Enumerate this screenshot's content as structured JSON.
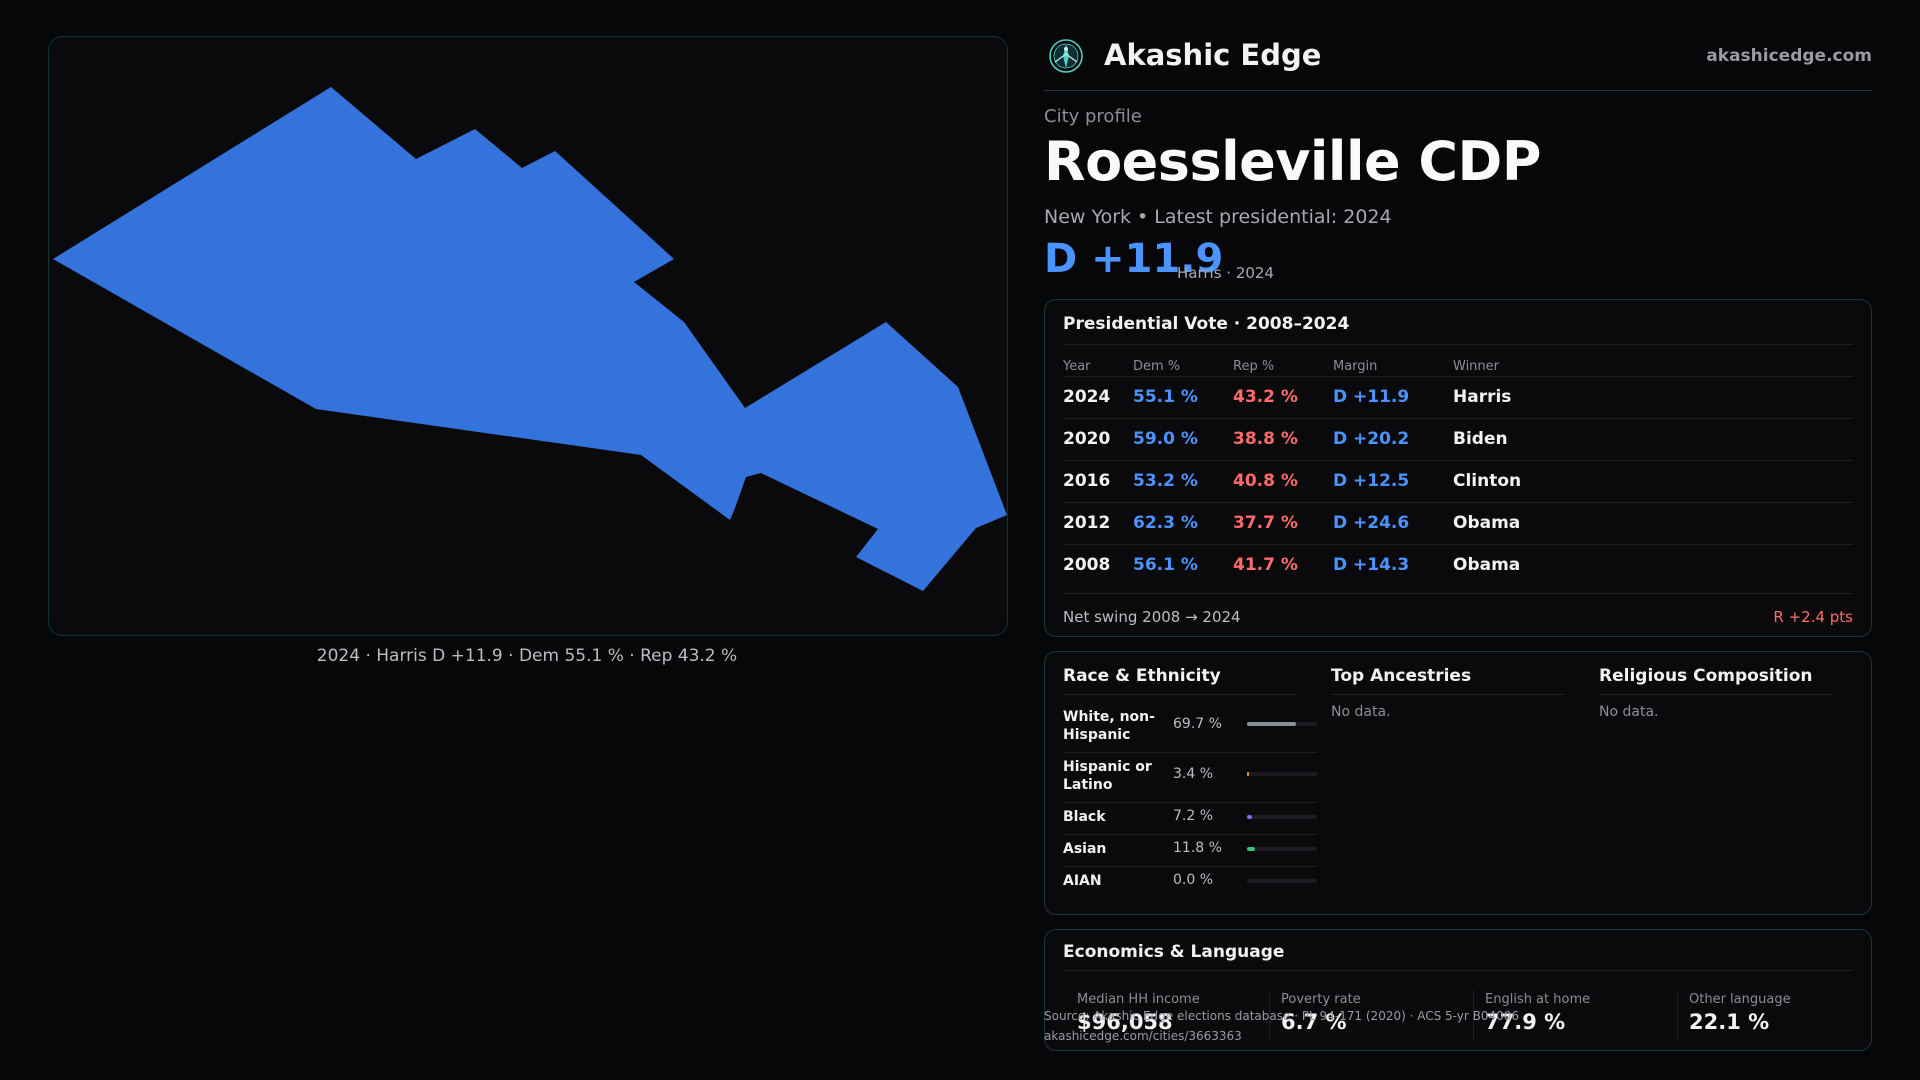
{
  "brand": {
    "name": "Akashic Edge",
    "url": "akashicedge.com",
    "logo_icon": "compass-rose-icon"
  },
  "profile": {
    "eyebrow": "City profile",
    "title": "Roessleville CDP",
    "subtitle": "New York  • Latest presidential: 2024",
    "margin": "D +11.9",
    "margin_note": "Harris · 2024"
  },
  "map": {
    "caption": "2024 · Harris D +11.9 · Dem 55.1 % · Rep 43.2 %",
    "fill_color": "#3573dc"
  },
  "votes": {
    "title": "Presidential Vote · 2008–2024",
    "headers": {
      "year": "Year",
      "dem": "Dem %",
      "rep": "Rep %",
      "margin": "Margin",
      "winner": "Winner"
    },
    "rows": [
      {
        "year": "2024",
        "dem": "55.1 %",
        "rep": "43.2 %",
        "margin": "D +11.9",
        "winner": "Harris"
      },
      {
        "year": "2020",
        "dem": "59.0 %",
        "rep": "38.8 %",
        "margin": "D +20.2",
        "winner": "Biden"
      },
      {
        "year": "2016",
        "dem": "53.2 %",
        "rep": "40.8 %",
        "margin": "D +12.5",
        "winner": "Clinton"
      },
      {
        "year": "2012",
        "dem": "62.3 %",
        "rep": "37.7 %",
        "margin": "D +24.6",
        "winner": "Obama"
      },
      {
        "year": "2008",
        "dem": "56.1 %",
        "rep": "41.7 %",
        "margin": "D +14.3",
        "winner": "Obama"
      }
    ],
    "swing_label": "Net swing 2008 → 2024",
    "swing_value": "R +2.4 pts"
  },
  "race": {
    "title": "Race & Ethnicity",
    "rows": [
      {
        "label": "White, non-Hispanic",
        "value": "69.7 %",
        "pct": 69.7,
        "color": "#8a8f98"
      },
      {
        "label": "Hispanic or Latino",
        "value": "3.4 %",
        "pct": 3.4,
        "color": "#e0a030"
      },
      {
        "label": "Black",
        "value": "7.2 %",
        "pct": 7.2,
        "color": "#7b6cf0"
      },
      {
        "label": "Asian",
        "value": "11.8 %",
        "pct": 11.8,
        "color": "#2ec27e"
      },
      {
        "label": "AIAN",
        "value": "0.0 %",
        "pct": 0.0,
        "color": "#c0c0c0"
      }
    ]
  },
  "ancestries": {
    "title": "Top Ancestries",
    "empty": "No data."
  },
  "religion": {
    "title": "Religious Composition",
    "empty": "No data."
  },
  "economics": {
    "title": "Economics & Language",
    "stats": [
      {
        "label": "Median HH income",
        "value": "$96,058"
      },
      {
        "label": "Poverty rate",
        "value": "6.7 %"
      },
      {
        "label": "English at home",
        "value": "77.9 %"
      },
      {
        "label": "Other language",
        "value": "22.1 %"
      }
    ]
  },
  "source": {
    "line1": "Source: Akashic Edge elections database · PL 94-171 (2020) · ACS 5-yr B04006",
    "line2": "akashicedge.com/cities/3663363"
  }
}
